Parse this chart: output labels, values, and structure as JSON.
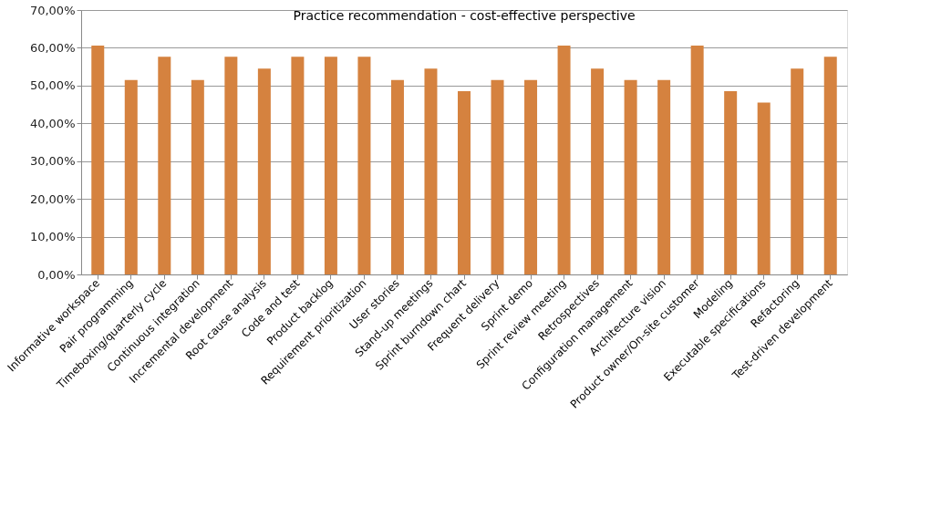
{
  "chart_data": {
    "type": "bar",
    "title": "Practice recommendation - cost-effective perspective",
    "categories": [
      "Informative workspace",
      "Pair programming",
      "Timeboxing/quarterly cycle",
      "Continuous integration",
      "Incremental development",
      "Root cause analysis",
      "Code and test",
      "Product backlog",
      "Requirement prioritization",
      "User stories",
      "Stand-up meetings",
      "Sprint burndown chart",
      "Frequent delivery",
      "Sprint demo",
      "Sprint review meeting",
      "Retrospectives",
      "Configuration management",
      "Architecture vision",
      "Product owner/On-site customer",
      "Modeling",
      "Executable specifications",
      "Refactoring",
      "Test-driven development"
    ],
    "values": [
      60.6,
      51.5,
      57.6,
      51.5,
      57.6,
      54.5,
      57.6,
      57.6,
      57.6,
      51.5,
      54.5,
      48.5,
      51.5,
      51.5,
      60.6,
      54.5,
      51.5,
      51.5,
      60.6,
      48.5,
      45.5,
      54.5,
      57.6
    ],
    "color": "#d5823f",
    "ylim": [
      0,
      70
    ],
    "yticks": [
      {
        "value": 0,
        "label": "0,00%"
      },
      {
        "value": 10,
        "label": "10,00%"
      },
      {
        "value": 20,
        "label": "20,00%"
      },
      {
        "value": 30,
        "label": "30,00%"
      },
      {
        "value": 40,
        "label": "40,00%"
      },
      {
        "value": 50,
        "label": "50,00%"
      },
      {
        "value": 60,
        "label": "60,00%"
      },
      {
        "value": 70,
        "label": "70,00%"
      }
    ],
    "grid": "y"
  }
}
